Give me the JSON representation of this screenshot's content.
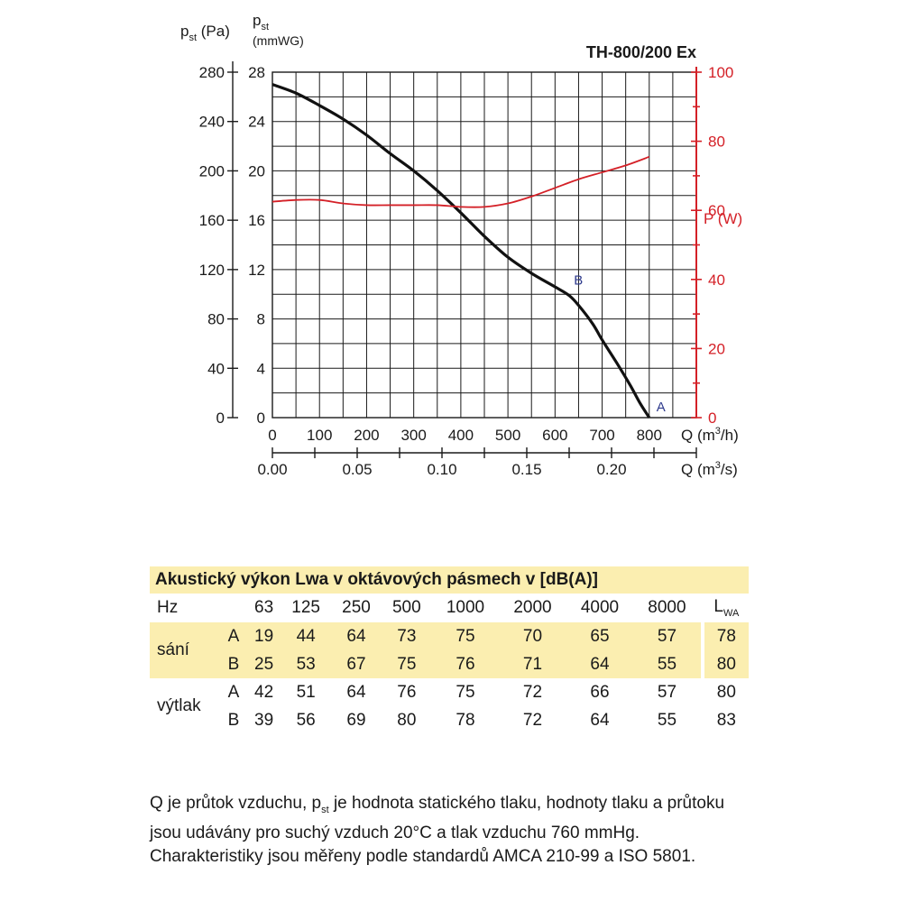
{
  "chart_data": {
    "type": "line",
    "title": "TH-800/200 Ex",
    "left_axis_label": "p",
    "left_axis_label_sub": "st",
    "left_axis_unit": "(Pa)",
    "inner_axis_label": "p",
    "inner_axis_label_sub": "st",
    "inner_axis_unit": "(mmWG)",
    "right_axis_label": "P (W)",
    "x_label": "Q (m",
    "x_label_sup": "3",
    "x_label_tail": "/h)",
    "x2_label": "Q (m",
    "x2_label_sup": "3",
    "x2_label_tail": "/s)",
    "xlim": [
      0,
      900
    ],
    "ylim_pa": [
      0,
      280
    ],
    "ylim_mmwg": [
      0,
      28
    ],
    "ylim_w": [
      0,
      100
    ],
    "grid": true,
    "pa_ticks": [
      "0",
      "40",
      "80",
      "120",
      "160",
      "200",
      "240",
      "280"
    ],
    "mmwg_ticks": [
      "0",
      "4",
      "8",
      "12",
      "16",
      "20",
      "24",
      "28"
    ],
    "w_ticks": [
      "0",
      "20",
      "40",
      "60",
      "80",
      "100"
    ],
    "x_ticks": [
      "0",
      "100",
      "200",
      "300",
      "400",
      "500",
      "600",
      "700",
      "800"
    ],
    "x2_ticks": [
      "0.00",
      "0.05",
      "0.10",
      "0.15",
      "0.20"
    ],
    "series": [
      {
        "axis": "pressure_mmwg",
        "color": "#111111",
        "x": [
          0,
          50,
          100,
          150,
          200,
          250,
          300,
          350,
          400,
          450,
          500,
          550,
          600,
          630,
          650,
          680,
          700,
          730,
          760,
          780,
          800
        ],
        "y": [
          27.0,
          26.3,
          25.3,
          24.2,
          22.9,
          21.4,
          20.0,
          18.4,
          16.6,
          14.7,
          13.0,
          11.7,
          10.6,
          9.9,
          9.1,
          7.6,
          6.3,
          4.5,
          2.6,
          1.2,
          0.0
        ]
      },
      {
        "axis": "power_w",
        "color": "#d42027",
        "x": [
          0,
          50,
          100,
          150,
          200,
          250,
          300,
          350,
          400,
          450,
          500,
          550,
          600,
          650,
          700,
          750,
          800
        ],
        "y": [
          62.5,
          63.0,
          63.0,
          62.0,
          61.5,
          61.5,
          61.5,
          61.5,
          61.0,
          61.0,
          62.0,
          64.0,
          66.5,
          69.0,
          71.0,
          73.0,
          75.5
        ]
      }
    ],
    "points": [
      {
        "label": "A",
        "x": 800,
        "y": 0
      },
      {
        "label": "B",
        "x": 640,
        "y": 10.5
      }
    ],
    "colors": {
      "pressure": "#111111",
      "power": "#d42027",
      "point_label": "#2e3a8c"
    }
  },
  "table": {
    "title": "Akustický výkon Lwa v oktávových pásmech v [dB(A)]",
    "hz_label": "Hz",
    "frequencies": [
      "63",
      "125",
      "250",
      "500",
      "1000",
      "2000",
      "4000",
      "8000"
    ],
    "lwa_label": "L",
    "lwa_label_sub": "WA",
    "groups": [
      {
        "name": "sání",
        "rows": [
          {
            "label": "A",
            "values": [
              "19",
              "44",
              "64",
              "73",
              "75",
              "70",
              "65",
              "57"
            ],
            "lwa": "78"
          },
          {
            "label": "B",
            "values": [
              "25",
              "53",
              "67",
              "75",
              "76",
              "71",
              "64",
              "55"
            ],
            "lwa": "80"
          }
        ]
      },
      {
        "name": "výtlak",
        "rows": [
          {
            "label": "A",
            "values": [
              "42",
              "51",
              "64",
              "76",
              "75",
              "72",
              "66",
              "57"
            ],
            "lwa": "80"
          },
          {
            "label": "B",
            "values": [
              "39",
              "56",
              "69",
              "80",
              "78",
              "72",
              "64",
              "55"
            ],
            "lwa": "83"
          }
        ]
      }
    ]
  },
  "footnote": {
    "part1": "Q je průtok vzduchu, p",
    "sub": "st",
    "part2": " je hodnota statického tlaku, hodnoty tlaku a průtoku jsou udávány pro suchý vzduch 20°C a tlak vzduchu 760 mmHg. Charakteristiky jsou měřeny podle standardů AMCA 210-99 a ISO 5801."
  }
}
